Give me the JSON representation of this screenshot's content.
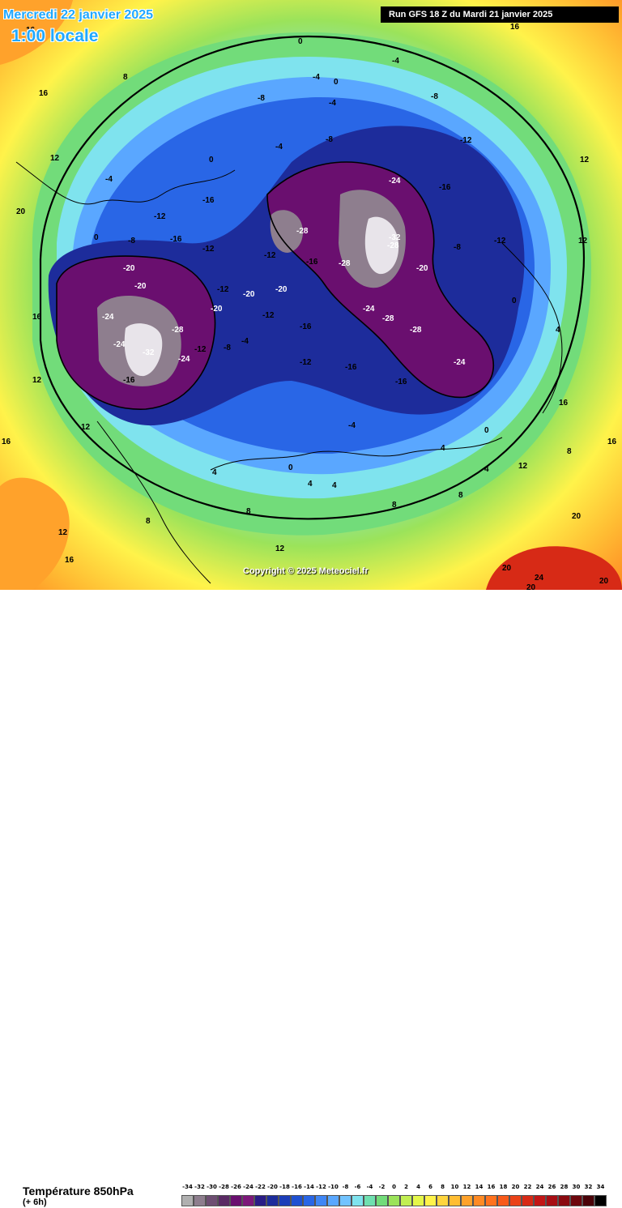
{
  "header": {
    "date": "Mercredi 22 janvier 2025",
    "local_time": "1:00 locale",
    "run": "Run GFS 18 Z du Mardi 21 janvier 2025"
  },
  "footer": {
    "variable": "Température 850hPa",
    "offset": "(+ 6h)",
    "copyright": "Copyright © 2025 Meteociel.fr"
  },
  "legend": {
    "ticks": [
      "-34",
      "-32",
      "-30",
      "-28",
      "-26",
      "-24",
      "-22",
      "-20",
      "-18",
      "-16",
      "-14",
      "-12",
      "-10",
      "-8",
      "-6",
      "-4",
      "-2",
      "0",
      "2",
      "4",
      "6",
      "8",
      "10",
      "12",
      "14",
      "16",
      "18",
      "20",
      "22",
      "24",
      "26",
      "28",
      "30",
      "32",
      "34"
    ],
    "colors": [
      "#b0b0b0",
      "#8e7e8e",
      "#6e4e72",
      "#5a2a64",
      "#6a0f6f",
      "#7d187a",
      "#2a1c86",
      "#1d2c9b",
      "#1c3db8",
      "#1f50d1",
      "#2966e6",
      "#3f86f5",
      "#5aa7ff",
      "#71c3ff",
      "#7fe3ee",
      "#6fe0b0",
      "#72dc7a",
      "#9be35a",
      "#c1ee52",
      "#e4f74a",
      "#fff34a",
      "#ffd53d",
      "#ffbd33",
      "#ffa22b",
      "#ff8a24",
      "#ff721e",
      "#f85a1a",
      "#ea4218",
      "#d72a16",
      "#c21616",
      "#a80e14",
      "#8a0a10",
      "#6d070d",
      "#4a0309",
      "#000000"
    ]
  },
  "map_labels": [
    {
      "text": "-32"
    },
    {
      "text": "-32"
    },
    {
      "text": "-28"
    },
    {
      "text": "-28"
    },
    {
      "text": "-28"
    },
    {
      "text": "-28"
    },
    {
      "text": "-28"
    },
    {
      "text": "-28"
    },
    {
      "text": "-24"
    },
    {
      "text": "-24"
    },
    {
      "text": "-24"
    },
    {
      "text": "-24"
    },
    {
      "text": "-24"
    },
    {
      "text": "-24"
    },
    {
      "text": "-20"
    },
    {
      "text": "-20"
    },
    {
      "text": "-20"
    },
    {
      "text": "-20"
    },
    {
      "text": "-20"
    },
    {
      "text": "-20"
    },
    {
      "text": "-16"
    },
    {
      "text": "-16"
    },
    {
      "text": "-16"
    },
    {
      "text": "-16"
    },
    {
      "text": "-16"
    },
    {
      "text": "-16"
    },
    {
      "text": "-16"
    },
    {
      "text": "-16"
    },
    {
      "text": "-12"
    },
    {
      "text": "-12"
    },
    {
      "text": "-12"
    },
    {
      "text": "-12"
    },
    {
      "text": "-12"
    },
    {
      "text": "-12"
    },
    {
      "text": "-12"
    },
    {
      "text": "-12"
    },
    {
      "text": "-12"
    },
    {
      "text": "-8"
    },
    {
      "text": "-8"
    },
    {
      "text": "-8"
    },
    {
      "text": "-8"
    },
    {
      "text": "-8"
    },
    {
      "text": "-8"
    },
    {
      "text": "-4"
    },
    {
      "text": "-4"
    },
    {
      "text": "-4"
    },
    {
      "text": "-4"
    },
    {
      "text": "-4"
    },
    {
      "text": "-4"
    },
    {
      "text": "-4"
    },
    {
      "text": "0"
    },
    {
      "text": "0"
    },
    {
      "text": "0"
    },
    {
      "text": "0"
    },
    {
      "text": "0"
    },
    {
      "text": "0"
    },
    {
      "text": "0"
    },
    {
      "text": "4"
    },
    {
      "text": "4"
    },
    {
      "text": "4"
    },
    {
      "text": "4"
    },
    {
      "text": "4"
    },
    {
      "text": "4"
    },
    {
      "text": "8"
    },
    {
      "text": "8"
    },
    {
      "text": "8"
    },
    {
      "text": "8"
    },
    {
      "text": "8"
    },
    {
      "text": "8"
    },
    {
      "text": "12"
    },
    {
      "text": "12"
    },
    {
      "text": "12"
    },
    {
      "text": "12"
    },
    {
      "text": "12"
    },
    {
      "text": "12"
    },
    {
      "text": "12"
    },
    {
      "text": "12"
    },
    {
      "text": "16"
    },
    {
      "text": "16"
    },
    {
      "text": "16"
    },
    {
      "text": "16"
    },
    {
      "text": "16"
    },
    {
      "text": "16"
    },
    {
      "text": "16"
    },
    {
      "text": "16"
    },
    {
      "text": "20"
    },
    {
      "text": "20"
    },
    {
      "text": "20"
    },
    {
      "text": "20"
    },
    {
      "text": "20"
    },
    {
      "text": "24"
    }
  ]
}
